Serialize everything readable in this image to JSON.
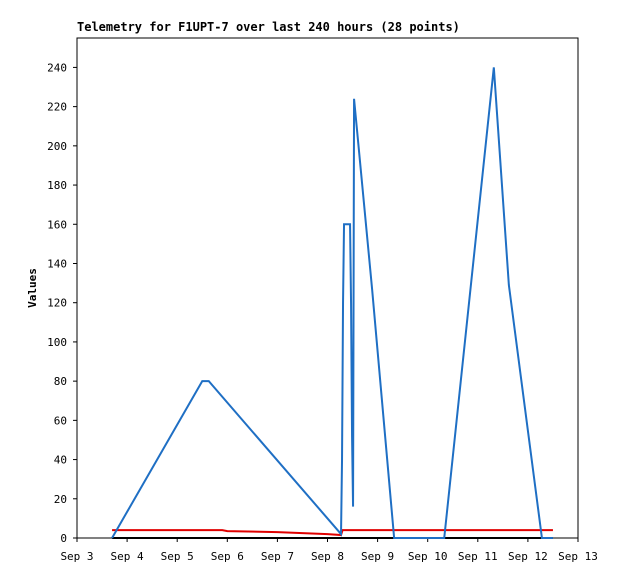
{
  "chart_data": {
    "type": "line",
    "title": "Telemetry for F1UPT-7 over last 240 hours (28 points)",
    "y_label": "Values",
    "xlim": [
      3,
      13
    ],
    "ylim": [
      0,
      255
    ],
    "xticks": [
      {
        "value": 3,
        "label": "Sep 3"
      },
      {
        "value": 4,
        "label": "Sep 4"
      },
      {
        "value": 5,
        "label": "Sep 5"
      },
      {
        "value": 6,
        "label": "Sep 6"
      },
      {
        "value": 7,
        "label": "Sep 7"
      },
      {
        "value": 8,
        "label": "Sep 8"
      },
      {
        "value": 9,
        "label": "Sep 9"
      },
      {
        "value": 10,
        "label": "Sep 10"
      },
      {
        "value": 11,
        "label": "Sep 11"
      },
      {
        "value": 12,
        "label": "Sep 12"
      },
      {
        "value": 13,
        "label": "Sep 13"
      }
    ],
    "yticks": [
      0,
      20,
      40,
      60,
      80,
      100,
      120,
      140,
      160,
      180,
      200,
      220,
      240
    ],
    "series": [
      {
        "color": "#1f6fc4",
        "x": [
          3.7,
          5.5,
          5.63,
          8.27,
          8.29,
          8.31,
          8.33,
          8.45,
          8.47,
          8.49,
          8.51,
          8.53,
          8.89,
          9.33,
          10.33,
          11.32,
          11.62,
          12.28,
          12.5
        ],
        "values": [
          0,
          80,
          80,
          2,
          40,
          120,
          160,
          160,
          120,
          52,
          16,
          224,
          127,
          0,
          0,
          240,
          129,
          0,
          0
        ]
      },
      {
        "color": "#e00000",
        "x": [
          3.7,
          5.9,
          6.0,
          7.0,
          7.5,
          8.0,
          8.27,
          8.3,
          12.5
        ],
        "values": [
          4,
          4,
          3.5,
          3,
          2.5,
          2,
          1.5,
          4,
          4
        ]
      },
      {
        "color": "#000000",
        "x": [
          3.7,
          12.5
        ],
        "values": [
          0,
          0
        ]
      }
    ]
  }
}
